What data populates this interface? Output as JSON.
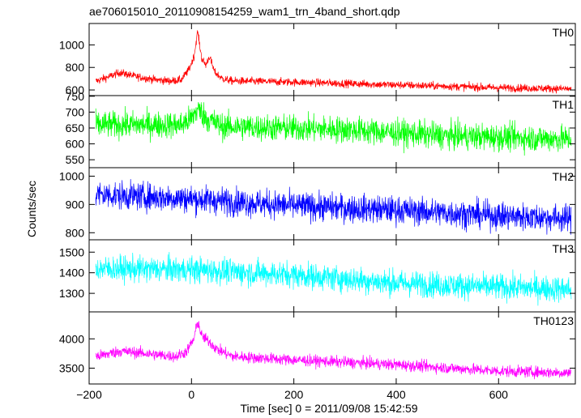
{
  "chart_data": {
    "type": "line",
    "title": "ae706015010_20110908154259_wam1_trn_4band_short.qdp",
    "xlabel": "Time [sec] 0 = 2011/09/08 15:42:59",
    "ylabel": "Counts/sec",
    "xlim": [
      -200,
      750
    ],
    "x_ticks": [
      -200,
      0,
      200,
      400,
      600
    ],
    "panels": [
      {
        "name": "TH0",
        "color": "#ff0000",
        "ylim": [
          550,
          1190
        ],
        "y_ticks": [
          600,
          800,
          1000
        ],
        "profile": [
          [
            -185,
            680
          ],
          [
            -160,
            720
          ],
          [
            -140,
            755
          ],
          [
            -110,
            720
          ],
          [
            -70,
            690
          ],
          [
            -40,
            680
          ],
          [
            -20,
            690
          ],
          [
            -5,
            780
          ],
          [
            5,
            900
          ],
          [
            12,
            1120
          ],
          [
            20,
            880
          ],
          [
            28,
            820
          ],
          [
            35,
            900
          ],
          [
            45,
            760
          ],
          [
            60,
            700
          ],
          [
            80,
            680
          ],
          [
            200,
            670
          ],
          [
            400,
            645
          ],
          [
            600,
            620
          ],
          [
            740,
            610
          ]
        ],
        "noise": 25
      },
      {
        "name": "TH1",
        "color": "#00ff00",
        "ylim": [
          525,
          752
        ],
        "y_ticks": [
          550,
          600,
          650,
          700,
          750
        ],
        "profile": [
          [
            -185,
            660
          ],
          [
            -100,
            660
          ],
          [
            -20,
            660
          ],
          [
            0,
            680
          ],
          [
            12,
            710
          ],
          [
            30,
            680
          ],
          [
            60,
            655
          ],
          [
            300,
            645
          ],
          [
            500,
            625
          ],
          [
            740,
            615
          ]
        ],
        "noise": 30
      },
      {
        "name": "TH2",
        "color": "#0000ff",
        "ylim": [
          775,
          1030
        ],
        "y_ticks": [
          800,
          900,
          1000
        ],
        "profile": [
          [
            -185,
            935
          ],
          [
            0,
            920
          ],
          [
            200,
            895
          ],
          [
            400,
            880
          ],
          [
            600,
            860
          ],
          [
            740,
            850
          ]
        ],
        "noise": 35
      },
      {
        "name": "TH3",
        "color": "#00ffff",
        "ylim": [
          1210,
          1560
        ],
        "y_ticks": [
          1300,
          1400,
          1500
        ],
        "profile": [
          [
            -185,
            1420
          ],
          [
            0,
            1415
          ],
          [
            200,
            1390
          ],
          [
            400,
            1350
          ],
          [
            600,
            1330
          ],
          [
            740,
            1320
          ]
        ],
        "noise": 45
      },
      {
        "name": "TH0123",
        "color": "#ff00ff",
        "ylim": [
          3230,
          4460
        ],
        "y_ticks": [
          3500,
          4000
        ],
        "profile": [
          [
            -185,
            3700
          ],
          [
            -140,
            3790
          ],
          [
            -100,
            3760
          ],
          [
            -60,
            3720
          ],
          [
            -30,
            3700
          ],
          [
            -10,
            3780
          ],
          [
            5,
            4000
          ],
          [
            12,
            4300
          ],
          [
            20,
            4050
          ],
          [
            35,
            3950
          ],
          [
            50,
            3820
          ],
          [
            80,
            3700
          ],
          [
            200,
            3640
          ],
          [
            400,
            3560
          ],
          [
            600,
            3450
          ],
          [
            740,
            3420
          ]
        ],
        "noise": 70
      }
    ]
  }
}
